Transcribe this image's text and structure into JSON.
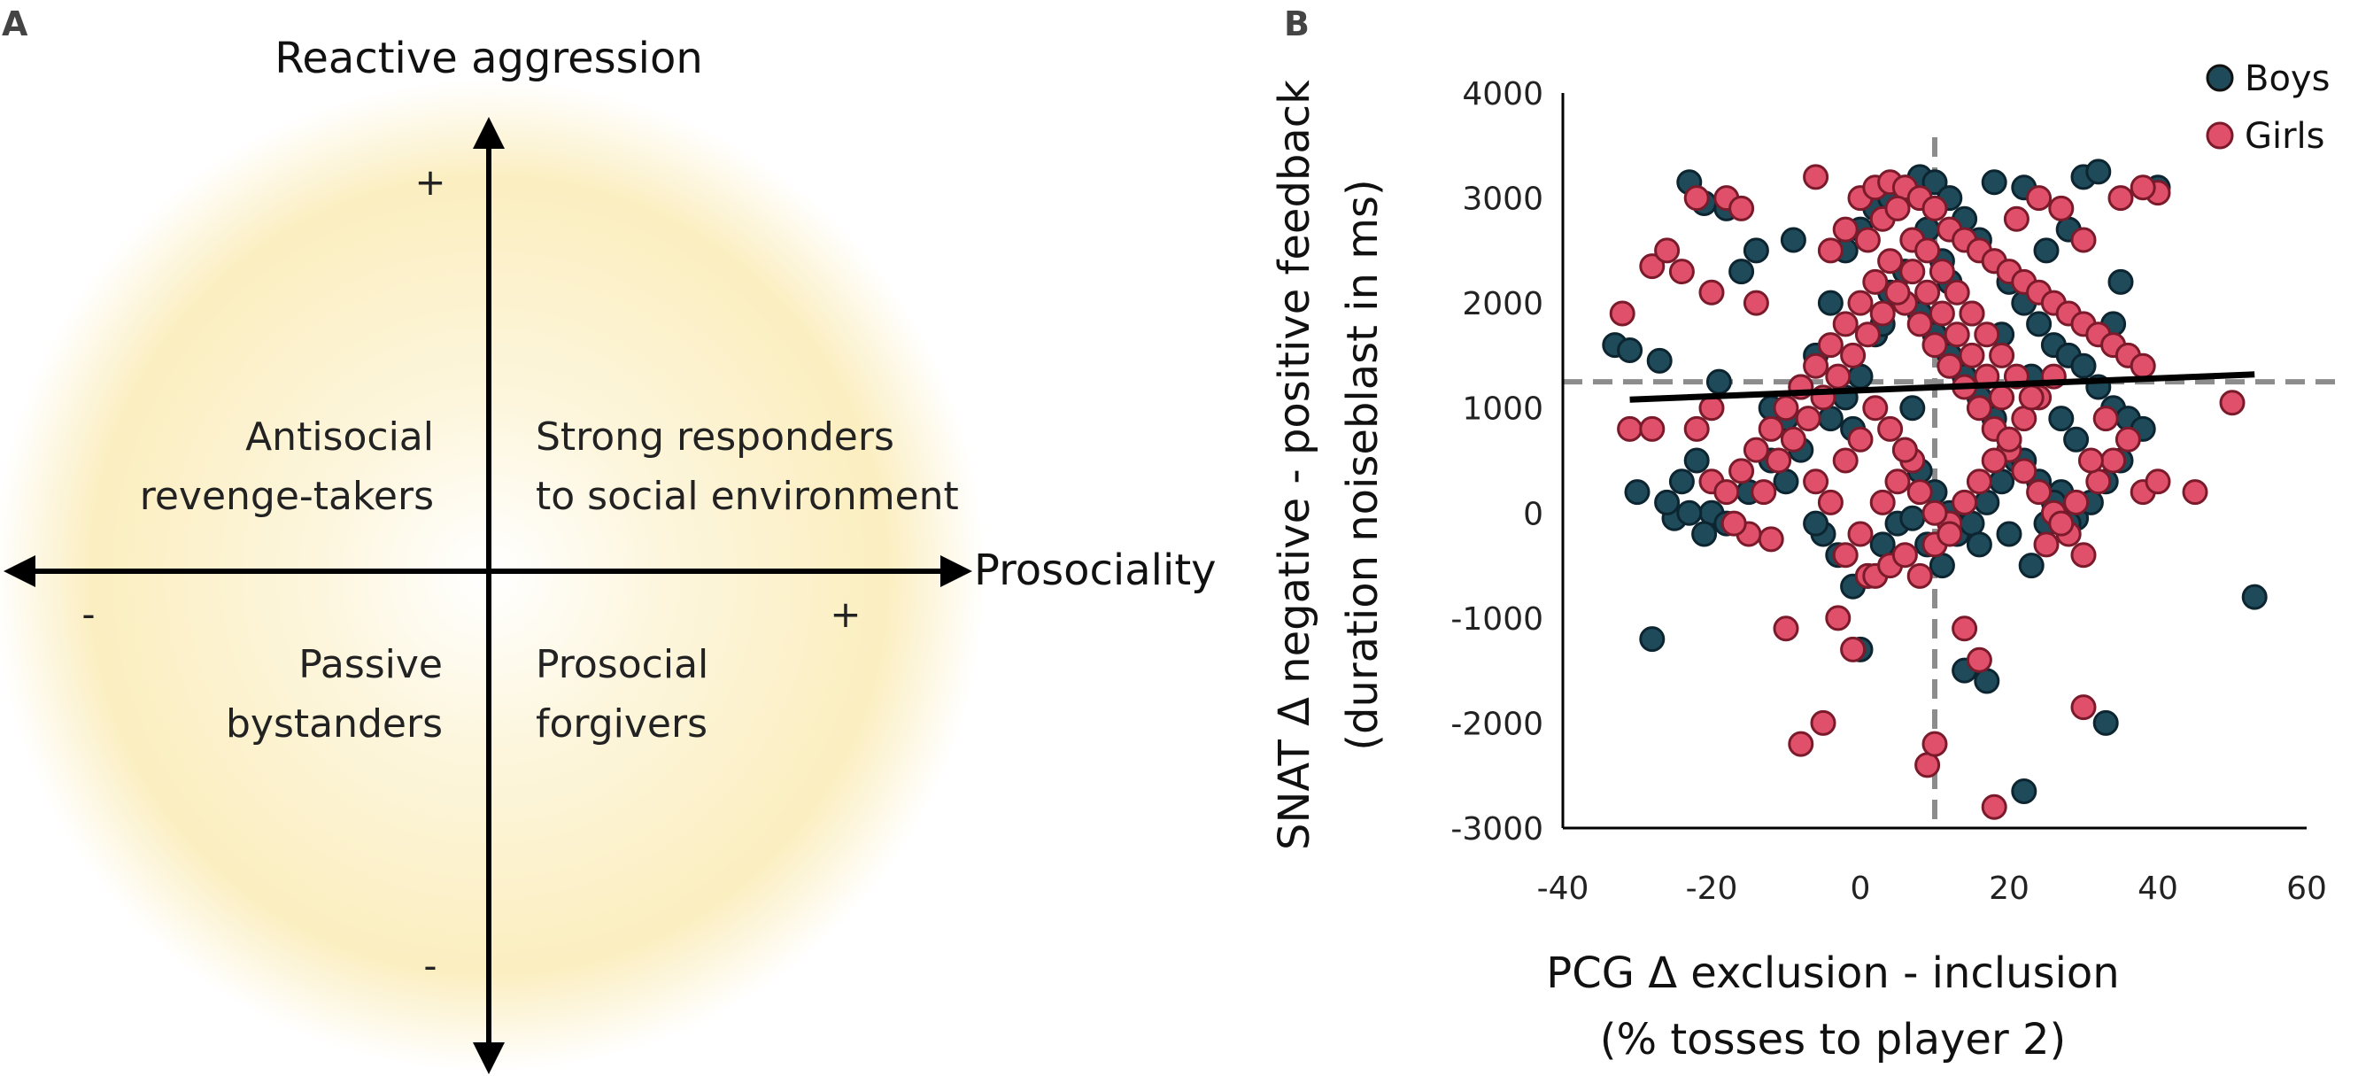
{
  "panel_a": {
    "letter": "A",
    "y_axis_label": "Reactive aggression",
    "x_axis_label": "Prosociality",
    "y_plus": "+",
    "y_minus": "-",
    "x_plus": "+",
    "x_minus": "-",
    "quadrants": {
      "top_left": [
        "Antisocial",
        "revenge-takers"
      ],
      "top_right": [
        "Strong responders",
        "to social environment"
      ],
      "bottom_left": [
        "Passive",
        "bystanders"
      ],
      "bottom_right": [
        "Prosocial",
        "forgivers"
      ]
    },
    "glow_color": "#fbeec0"
  },
  "chart_data": {
    "letter": "B",
    "type": "scatter",
    "xlabel_line1": "PCG Δ exclusion - inclusion",
    "xlabel_line2": "(% tosses to player 2)",
    "ylabel_line1": "SNAT Δ negative - positive feedback",
    "ylabel_line2": "(duration noiseblast in ms)",
    "xlim": [
      -40,
      60
    ],
    "ylim": [
      -3000,
      4000
    ],
    "xticks": [
      -40,
      -20,
      0,
      20,
      40,
      60
    ],
    "yticks": [
      4000,
      3000,
      2000,
      1000,
      0,
      -1000,
      -2000,
      -3000
    ],
    "xtick_labels": [
      "-40",
      "-20",
      "0",
      "20",
      "40",
      "60"
    ],
    "ytick_labels": [
      "4000",
      "3000",
      "2000",
      "1000",
      "0",
      "-1000",
      "-2000",
      "-3000"
    ],
    "mean_x": 10,
    "mean_y": 1250,
    "trend_line": {
      "x": [
        -31,
        53
      ],
      "y": [
        1080,
        1320
      ],
      "color": "#000000"
    },
    "reference_line_color": "#8c8c8c",
    "series": [
      {
        "name": "Boys",
        "color": "#1e4a5a",
        "points": [
          [
            -33,
            1600
          ],
          [
            -31,
            1550
          ],
          [
            -27,
            1450
          ],
          [
            -23,
            3150
          ],
          [
            -21,
            2950
          ],
          [
            -18,
            2900
          ],
          [
            -16,
            2300
          ],
          [
            -19,
            1250
          ],
          [
            -22,
            500
          ],
          [
            -24,
            300
          ],
          [
            -25,
            -50
          ],
          [
            -20,
            0
          ],
          [
            -18,
            -100
          ],
          [
            -15,
            200
          ],
          [
            -12,
            500
          ],
          [
            -10,
            900
          ],
          [
            -8,
            1200
          ],
          [
            -6,
            1500
          ],
          [
            -4,
            2000
          ],
          [
            -2,
            2500
          ],
          [
            0,
            2700
          ],
          [
            2,
            2900
          ],
          [
            4,
            3000
          ],
          [
            6,
            3100
          ],
          [
            8,
            3200
          ],
          [
            10,
            3150
          ],
          [
            12,
            3000
          ],
          [
            14,
            2800
          ],
          [
            16,
            2600
          ],
          [
            18,
            2400
          ],
          [
            20,
            2200
          ],
          [
            22,
            2000
          ],
          [
            24,
            1800
          ],
          [
            26,
            1600
          ],
          [
            28,
            1500
          ],
          [
            30,
            1400
          ],
          [
            32,
            1200
          ],
          [
            34,
            1000
          ],
          [
            36,
            900
          ],
          [
            38,
            800
          ],
          [
            40,
            3100
          ],
          [
            30,
            3200
          ],
          [
            32,
            3250
          ],
          [
            28,
            2700
          ],
          [
            25,
            2500
          ],
          [
            22,
            3100
          ],
          [
            18,
            3150
          ],
          [
            -5,
            -200
          ],
          [
            -3,
            -400
          ],
          [
            -1,
            -700
          ],
          [
            1,
            -600
          ],
          [
            3,
            -300
          ],
          [
            5,
            -100
          ],
          [
            7,
            -50
          ],
          [
            9,
            -300
          ],
          [
            11,
            -500
          ],
          [
            13,
            -200
          ],
          [
            15,
            -100
          ],
          [
            17,
            100
          ],
          [
            19,
            300
          ],
          [
            21,
            500
          ],
          [
            23,
            -500
          ],
          [
            25,
            -100
          ],
          [
            27,
            200
          ],
          [
            29,
            -50
          ],
          [
            31,
            100
          ],
          [
            33,
            300
          ],
          [
            35,
            500
          ],
          [
            -28,
            -1200
          ],
          [
            0,
            -1300
          ],
          [
            14,
            -1500
          ],
          [
            17,
            -1600
          ],
          [
            22,
            -2650
          ],
          [
            33,
            -2000
          ],
          [
            53,
            -800
          ],
          [
            -10,
            300
          ],
          [
            -8,
            600
          ],
          [
            -6,
            -100
          ],
          [
            -4,
            900
          ],
          [
            -2,
            1100
          ],
          [
            0,
            1300
          ],
          [
            2,
            1700
          ],
          [
            4,
            2100
          ],
          [
            6,
            2300
          ],
          [
            8,
            1900
          ],
          [
            10,
            1700
          ],
          [
            12,
            1500
          ],
          [
            14,
            1300
          ],
          [
            16,
            1100
          ],
          [
            18,
            900
          ],
          [
            20,
            700
          ],
          [
            22,
            500
          ],
          [
            24,
            300
          ],
          [
            26,
            100
          ],
          [
            28,
            -100
          ],
          [
            -12,
            1000
          ],
          [
            -14,
            2500
          ],
          [
            -9,
            2600
          ],
          [
            35,
            2200
          ],
          [
            34,
            1800
          ],
          [
            -30,
            200
          ],
          [
            -26,
            100
          ],
          [
            -23,
            0
          ],
          [
            -21,
            -200
          ],
          [
            6,
            600
          ],
          [
            8,
            400
          ],
          [
            10,
            200
          ],
          [
            12,
            0
          ],
          [
            16,
            -300
          ],
          [
            20,
            -200
          ],
          [
            12,
            2200
          ],
          [
            3,
            1800
          ],
          [
            -1,
            800
          ],
          [
            7,
            1000
          ],
          [
            9,
            2700
          ],
          [
            11,
            2400
          ],
          [
            15,
            1900
          ],
          [
            19,
            1700
          ],
          [
            23,
            1300
          ],
          [
            27,
            900
          ],
          [
            29,
            700
          ]
        ]
      },
      {
        "name": "Girls",
        "color": "#e0506a",
        "points": [
          [
            -32,
            1900
          ],
          [
            -31,
            800
          ],
          [
            -28,
            800
          ],
          [
            -28,
            2350
          ],
          [
            -26,
            2500
          ],
          [
            -24,
            2300
          ],
          [
            -22,
            3000
          ],
          [
            -20,
            2100
          ],
          [
            -18,
            3000
          ],
          [
            -16,
            2900
          ],
          [
            -14,
            2000
          ],
          [
            -13,
            200
          ],
          [
            -12,
            -250
          ],
          [
            -10,
            -1100
          ],
          [
            -8,
            -2200
          ],
          [
            -5,
            -2000
          ],
          [
            -3,
            -1000
          ],
          [
            -1,
            -1300
          ],
          [
            1,
            -600
          ],
          [
            3,
            100
          ],
          [
            5,
            300
          ],
          [
            7,
            500
          ],
          [
            -6,
            3200
          ],
          [
            -4,
            2500
          ],
          [
            -2,
            2700
          ],
          [
            0,
            3000
          ],
          [
            2,
            3100
          ],
          [
            4,
            3150
          ],
          [
            6,
            3100
          ],
          [
            8,
            3000
          ],
          [
            10,
            2900
          ],
          [
            12,
            2700
          ],
          [
            14,
            2600
          ],
          [
            16,
            2500
          ],
          [
            18,
            2400
          ],
          [
            20,
            2300
          ],
          [
            22,
            2200
          ],
          [
            24,
            2100
          ],
          [
            26,
            2000
          ],
          [
            28,
            1900
          ],
          [
            30,
            1800
          ],
          [
            32,
            1700
          ],
          [
            34,
            1600
          ],
          [
            36,
            1500
          ],
          [
            38,
            1400
          ],
          [
            40,
            3050
          ],
          [
            38,
            3100
          ],
          [
            35,
            3000
          ],
          [
            30,
            2600
          ],
          [
            27,
            2900
          ],
          [
            24,
            3000
          ],
          [
            21,
            2800
          ],
          [
            -20,
            300
          ],
          [
            -18,
            200
          ],
          [
            -16,
            400
          ],
          [
            -14,
            600
          ],
          [
            -12,
            800
          ],
          [
            -10,
            1000
          ],
          [
            -8,
            1200
          ],
          [
            -6,
            1400
          ],
          [
            -4,
            1600
          ],
          [
            -2,
            1800
          ],
          [
            0,
            2000
          ],
          [
            2,
            2200
          ],
          [
            4,
            2400
          ],
          [
            6,
            2000
          ],
          [
            8,
            1800
          ],
          [
            10,
            1600
          ],
          [
            12,
            1400
          ],
          [
            14,
            1200
          ],
          [
            16,
            1000
          ],
          [
            18,
            800
          ],
          [
            20,
            600
          ],
          [
            22,
            400
          ],
          [
            24,
            200
          ],
          [
            26,
            0
          ],
          [
            28,
            -200
          ],
          [
            30,
            -400
          ],
          [
            32,
            300
          ],
          [
            34,
            500
          ],
          [
            36,
            700
          ],
          [
            38,
            200
          ],
          [
            40,
            300
          ],
          [
            45,
            200
          ],
          [
            50,
            1050
          ],
          [
            9,
            -2400
          ],
          [
            10,
            -2200
          ],
          [
            14,
            -1100
          ],
          [
            16,
            -1400
          ],
          [
            18,
            -2800
          ],
          [
            30,
            -1850
          ],
          [
            -2,
            -400
          ],
          [
            0,
            -200
          ],
          [
            2,
            -600
          ],
          [
            4,
            -500
          ],
          [
            6,
            -400
          ],
          [
            8,
            -600
          ],
          [
            10,
            -300
          ],
          [
            12,
            -100
          ],
          [
            14,
            100
          ],
          [
            16,
            300
          ],
          [
            18,
            500
          ],
          [
            20,
            700
          ],
          [
            22,
            900
          ],
          [
            24,
            1100
          ],
          [
            26,
            1300
          ],
          [
            -15,
            -200
          ],
          [
            -20,
            1000
          ],
          [
            -17,
            -100
          ],
          [
            -22,
            800
          ],
          [
            1,
            2600
          ],
          [
            3,
            2800
          ],
          [
            5,
            2900
          ],
          [
            7,
            2600
          ],
          [
            9,
            2500
          ],
          [
            11,
            2300
          ],
          [
            13,
            2100
          ],
          [
            15,
            1900
          ],
          [
            17,
            1700
          ],
          [
            19,
            1500
          ],
          [
            21,
            1300
          ],
          [
            23,
            1100
          ],
          [
            -11,
            500
          ],
          [
            -9,
            700
          ],
          [
            -7,
            900
          ],
          [
            -5,
            1100
          ],
          [
            -3,
            1300
          ],
          [
            -1,
            1500
          ],
          [
            1,
            1700
          ],
          [
            3,
            1900
          ],
          [
            5,
            2100
          ],
          [
            7,
            2300
          ],
          [
            9,
            2100
          ],
          [
            11,
            1900
          ],
          [
            13,
            1700
          ],
          [
            15,
            1500
          ],
          [
            17,
            1300
          ],
          [
            19,
            1100
          ],
          [
            2,
            1000
          ],
          [
            4,
            800
          ],
          [
            6,
            600
          ],
          [
            8,
            200
          ],
          [
            10,
            0
          ],
          [
            12,
            -200
          ],
          [
            -6,
            300
          ],
          [
            -4,
            100
          ],
          [
            -2,
            500
          ],
          [
            0,
            700
          ],
          [
            25,
            -300
          ],
          [
            27,
            -100
          ],
          [
            29,
            100
          ],
          [
            31,
            500
          ],
          [
            33,
            900
          ]
        ]
      }
    ],
    "legend": {
      "position": "top-right"
    }
  }
}
